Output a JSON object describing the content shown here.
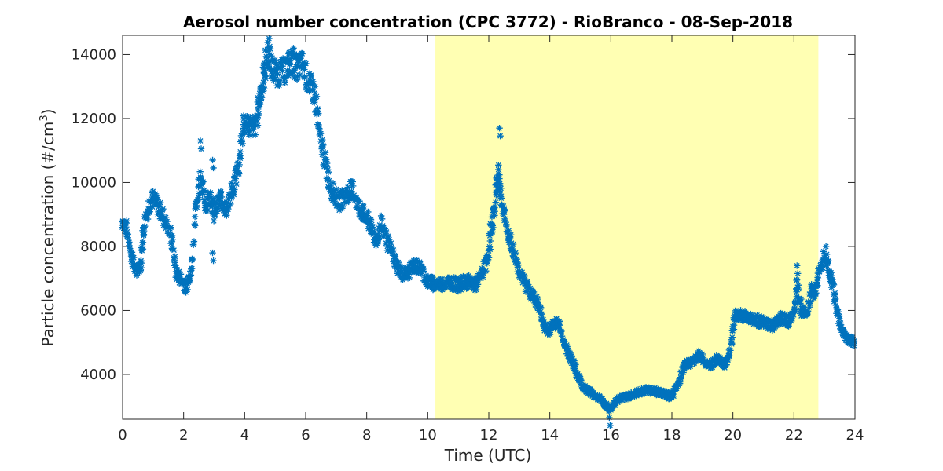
{
  "chart_data": {
    "type": "scatter",
    "title": "Aerosol number concentration (CPC 3772) - RioBranco - 08-Sep-2018",
    "xlabel": "Time (UTC)",
    "ylabel_main": "Particle concentration (#/cm",
    "ylabel_sup": "3",
    "ylabel_close": ")",
    "xlim": [
      0,
      24
    ],
    "ylim": [
      2600,
      14600
    ],
    "xticks": [
      0,
      2,
      4,
      6,
      8,
      10,
      12,
      14,
      16,
      18,
      20,
      22,
      24
    ],
    "yticks": [
      4000,
      6000,
      8000,
      10000,
      12000,
      14000
    ],
    "grid": false,
    "marker": "asterisk",
    "colors": {
      "series": "#0072bd",
      "shade": "#ffffb3",
      "axis": "#262626"
    },
    "shaded_region": [
      10.25,
      22.8
    ],
    "series": [
      {
        "values": [
          [
            0.0,
            8800
          ],
          [
            0.15,
            8500
          ],
          [
            0.3,
            7700
          ],
          [
            0.45,
            7200
          ],
          [
            0.6,
            7500
          ],
          [
            0.7,
            8600
          ],
          [
            0.85,
            9300
          ],
          [
            1.0,
            9500
          ],
          [
            1.2,
            9200
          ],
          [
            1.4,
            8800
          ],
          [
            1.6,
            8300
          ],
          [
            1.75,
            7200
          ],
          [
            1.9,
            7000
          ],
          [
            2.1,
            6700
          ],
          [
            2.25,
            7300
          ],
          [
            2.4,
            9200
          ],
          [
            2.55,
            10200
          ],
          [
            2.7,
            9300
          ],
          [
            2.9,
            9600
          ],
          [
            3.0,
            9000
          ],
          [
            3.2,
            9500
          ],
          [
            3.4,
            9200
          ],
          [
            3.6,
            9700
          ],
          [
            3.8,
            10500
          ],
          [
            3.95,
            11700
          ],
          [
            4.1,
            11900
          ],
          [
            4.3,
            11600
          ],
          [
            4.45,
            12300
          ],
          [
            4.55,
            12900
          ],
          [
            4.65,
            13400
          ],
          [
            4.75,
            14100
          ],
          [
            4.9,
            13500
          ],
          [
            5.1,
            13400
          ],
          [
            5.3,
            13500
          ],
          [
            5.5,
            13800
          ],
          [
            5.7,
            13600
          ],
          [
            5.9,
            13700
          ],
          [
            6.1,
            13100
          ],
          [
            6.3,
            12800
          ],
          [
            6.45,
            11500
          ],
          [
            6.6,
            10800
          ],
          [
            6.75,
            10100
          ],
          [
            6.9,
            9700
          ],
          [
            7.1,
            9400
          ],
          [
            7.3,
            9600
          ],
          [
            7.55,
            9800
          ],
          [
            7.7,
            9300
          ],
          [
            7.9,
            9000
          ],
          [
            8.1,
            8700
          ],
          [
            8.3,
            8200
          ],
          [
            8.5,
            8700
          ],
          [
            8.7,
            8100
          ],
          [
            8.9,
            7600
          ],
          [
            9.1,
            7200
          ],
          [
            9.3,
            7100
          ],
          [
            9.55,
            7400
          ],
          [
            9.8,
            7300
          ],
          [
            10.0,
            6900
          ],
          [
            10.3,
            6800
          ],
          [
            10.7,
            6900
          ],
          [
            11.0,
            6800
          ],
          [
            11.3,
            6900
          ],
          [
            11.6,
            6800
          ],
          [
            11.8,
            7200
          ],
          [
            12.0,
            7800
          ],
          [
            12.1,
            8700
          ],
          [
            12.2,
            9300
          ],
          [
            12.3,
            10400
          ],
          [
            12.4,
            9500
          ],
          [
            12.55,
            8700
          ],
          [
            12.75,
            8000
          ],
          [
            12.95,
            7400
          ],
          [
            13.15,
            6900
          ],
          [
            13.35,
            6600
          ],
          [
            13.6,
            6200
          ],
          [
            13.8,
            5600
          ],
          [
            13.95,
            5300
          ],
          [
            14.1,
            5600
          ],
          [
            14.3,
            5600
          ],
          [
            14.5,
            4900
          ],
          [
            14.7,
            4500
          ],
          [
            14.9,
            4000
          ],
          [
            15.1,
            3600
          ],
          [
            15.4,
            3400
          ],
          [
            15.7,
            3200
          ],
          [
            15.95,
            2900
          ],
          [
            16.2,
            3200
          ],
          [
            16.5,
            3300
          ],
          [
            16.8,
            3400
          ],
          [
            17.1,
            3500
          ],
          [
            17.4,
            3500
          ],
          [
            17.7,
            3400
          ],
          [
            18.0,
            3300
          ],
          [
            18.2,
            3700
          ],
          [
            18.4,
            4300
          ],
          [
            18.7,
            4400
          ],
          [
            18.9,
            4600
          ],
          [
            19.1,
            4400
          ],
          [
            19.3,
            4300
          ],
          [
            19.5,
            4500
          ],
          [
            19.75,
            4300
          ],
          [
            19.9,
            4700
          ],
          [
            20.05,
            5800
          ],
          [
            20.2,
            5900
          ],
          [
            20.45,
            5800
          ],
          [
            20.75,
            5700
          ],
          [
            21.05,
            5600
          ],
          [
            21.35,
            5500
          ],
          [
            21.6,
            5800
          ],
          [
            21.8,
            5600
          ],
          [
            22.0,
            5900
          ],
          [
            22.1,
            6800
          ],
          [
            22.25,
            6000
          ],
          [
            22.45,
            5900
          ],
          [
            22.6,
            6800
          ],
          [
            22.7,
            6400
          ],
          [
            22.85,
            7400
          ],
          [
            23.0,
            7800
          ],
          [
            23.15,
            7300
          ],
          [
            23.25,
            6900
          ],
          [
            23.4,
            6000
          ],
          [
            23.6,
            5300
          ],
          [
            23.8,
            5100
          ],
          [
            24.0,
            5000
          ]
        ],
        "peaks": [
          [
            2.55,
            11300
          ],
          [
            2.95,
            10700
          ],
          [
            2.95,
            7800
          ],
          [
            4.8,
            14500
          ],
          [
            5.6,
            14200
          ],
          [
            12.35,
            11700
          ],
          [
            15.95,
            2650
          ],
          [
            23.05,
            8000
          ],
          [
            22.1,
            7400
          ]
        ]
      }
    ]
  }
}
